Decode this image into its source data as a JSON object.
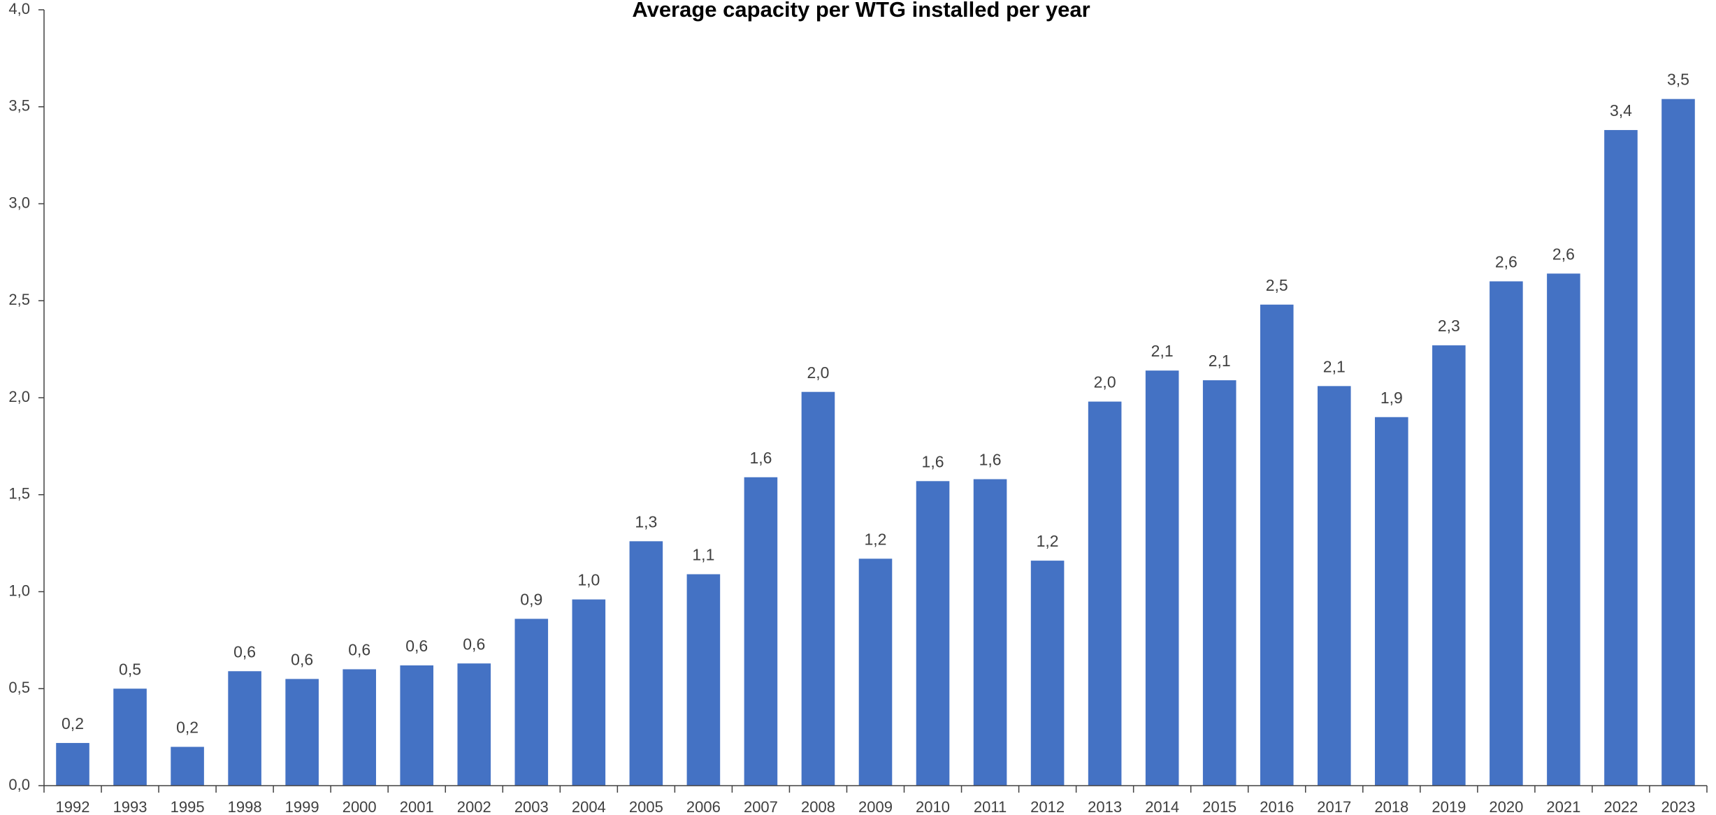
{
  "chart_data": {
    "type": "bar",
    "title": "Average capacity per WTG installed per year",
    "categories": [
      "1992",
      "1993",
      "1995",
      "1998",
      "1999",
      "2000",
      "2001",
      "2002",
      "2003",
      "2004",
      "2005",
      "2006",
      "2007",
      "2008",
      "2009",
      "2010",
      "2011",
      "2012",
      "2013",
      "2014",
      "2015",
      "2016",
      "2017",
      "2018",
      "2019",
      "2020",
      "2021",
      "2022",
      "2023"
    ],
    "values": [
      0.22,
      0.5,
      0.2,
      0.59,
      0.55,
      0.6,
      0.62,
      0.63,
      0.86,
      0.96,
      1.26,
      1.09,
      1.59,
      2.03,
      1.17,
      1.57,
      1.58,
      1.16,
      1.98,
      2.14,
      2.09,
      2.48,
      2.06,
      1.9,
      2.27,
      2.6,
      2.64,
      3.38,
      3.54
    ],
    "value_labels": [
      "0,2",
      "0,5",
      "0,2",
      "0,6",
      "0,6",
      "0,6",
      "0,6",
      "0,6",
      "0,9",
      "1,0",
      "1,3",
      "1,1",
      "1,6",
      "2,0",
      "1,2",
      "1,6",
      "1,6",
      "1,2",
      "2,0",
      "2,1",
      "2,1",
      "2,5",
      "2,1",
      "1,9",
      "2,3",
      "2,6",
      "2,6",
      "3,4",
      "3,5"
    ],
    "color": "#4472c4",
    "ylim": [
      0,
      4
    ],
    "yticks": [
      {
        "value": 0,
        "label": "0,0"
      },
      {
        "value": 0.5,
        "label": "0,5"
      },
      {
        "value": 1,
        "label": "1,0"
      },
      {
        "value": 1.5,
        "label": "1,5"
      },
      {
        "value": 2,
        "label": "2,0"
      },
      {
        "value": 2.5,
        "label": "2,5"
      },
      {
        "value": 3,
        "label": "3,0"
      },
      {
        "value": 3.5,
        "label": "3,5"
      },
      {
        "value": 4,
        "label": "4,0"
      }
    ],
    "grid": false
  }
}
